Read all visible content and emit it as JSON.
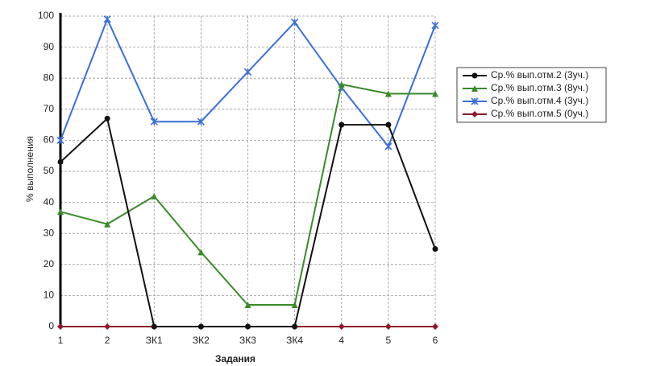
{
  "chart_data": {
    "type": "line",
    "x_label": "Задания",
    "y_label": "% выполнения",
    "categories": [
      "1",
      "2",
      "ЗК1",
      "ЗК2",
      "ЗК3",
      "ЗК4",
      "4",
      "5",
      "6"
    ],
    "series": [
      {
        "name": "Ср.% вып.отм.2 (3уч.)",
        "color": "#111111",
        "marker": "circle",
        "values": [
          53,
          67,
          0,
          0,
          0,
          0,
          65,
          65,
          25
        ]
      },
      {
        "name": "Ср.% вып.отм.3 (8уч.)",
        "color": "#3a8a2a",
        "marker": "triangle",
        "values": [
          37,
          33,
          42,
          24,
          7,
          7,
          78,
          75,
          75
        ]
      },
      {
        "name": "Ср.% вып.отм.4 (3уч.)",
        "color": "#3a6fd8",
        "marker": "star",
        "values": [
          60,
          99,
          66,
          66,
          82,
          98,
          77,
          58,
          97
        ]
      },
      {
        "name": "Ср.% вып.отм.5 (0уч.)",
        "color": "#8b1a2a",
        "marker": "diamond",
        "values": [
          0,
          0,
          0,
          0,
          0,
          0,
          0,
          0,
          0
        ]
      }
    ],
    "ylim": [
      0,
      100
    ],
    "yticks": [
      0,
      10,
      20,
      30,
      40,
      50,
      60,
      70,
      80,
      90,
      100
    ],
    "grid": true
  }
}
